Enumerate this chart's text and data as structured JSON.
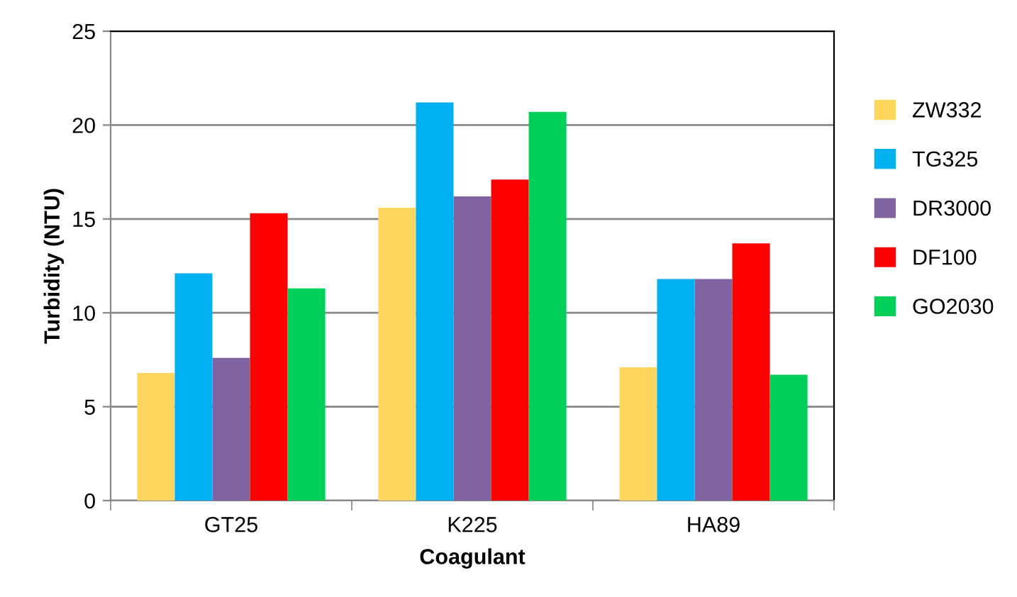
{
  "chart_data": {
    "type": "bar",
    "xlabel": "Coagulant",
    "ylabel": "Turbidity (NTU)",
    "categories": [
      "GT25",
      "K225",
      "HA89"
    ],
    "series": [
      {
        "name": "ZW332",
        "color": "#ffd75e",
        "values": [
          6.8,
          15.6,
          7.1
        ]
      },
      {
        "name": "TG325",
        "color": "#00b0f0",
        "values": [
          12.1,
          21.2,
          11.8
        ]
      },
      {
        "name": "DR3000",
        "color": "#8064a2",
        "values": [
          7.6,
          16.2,
          11.8
        ]
      },
      {
        "name": "DF100",
        "color": "#ff0000",
        "values": [
          15.3,
          17.1,
          13.7
        ]
      },
      {
        "name": "GO2030",
        "color": "#00d05a",
        "values": [
          11.3,
          20.7,
          6.7
        ]
      }
    ],
    "ylim": [
      0,
      25
    ],
    "yticks": [
      0,
      5,
      10,
      15,
      20,
      25
    ],
    "grid": "y",
    "legend": "right"
  }
}
